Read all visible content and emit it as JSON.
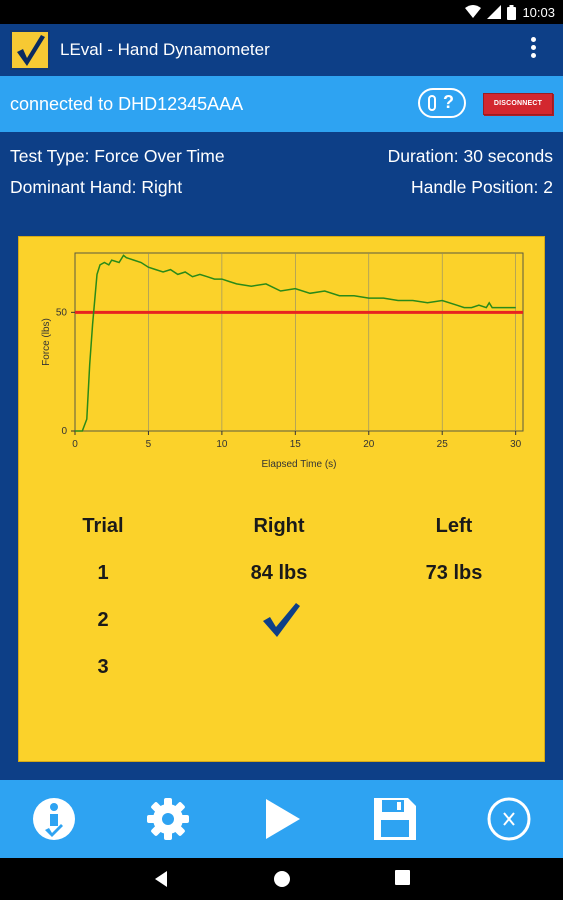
{
  "status_bar": {
    "time": "10:03"
  },
  "app_bar": {
    "title": "LEval - Hand Dynamometer"
  },
  "connection": {
    "text": "connected to DHD12345AAA",
    "help_label": "?",
    "disconnect_label": "DISCONNECT"
  },
  "test_info": {
    "test_type": "Test Type: Force Over Time",
    "duration": "Duration: 30 seconds",
    "dominant_hand": "Dominant Hand: Right",
    "handle_position": "Handle Position: 2"
  },
  "chart_data": {
    "type": "line",
    "xlabel": "Elapsed Time (s)",
    "ylabel": "Force (lbs)",
    "xlim": [
      0,
      30.5
    ],
    "ylim": [
      0,
      75
    ],
    "xticks": [
      0,
      5,
      10,
      15,
      20,
      25,
      30
    ],
    "yticks": [
      0,
      50
    ],
    "grid": true,
    "threshold": {
      "value": 50,
      "color": "#e8231f"
    },
    "series": [
      {
        "color": "#2a8a18",
        "x": [
          0,
          0.5,
          0.8,
          1.0,
          1.2,
          1.5,
          1.7,
          2.0,
          2.3,
          2.5,
          3.0,
          3.3,
          3.5,
          4.0,
          4.5,
          5.0,
          5.5,
          6.0,
          6.5,
          7.0,
          7.5,
          8.0,
          8.5,
          9.0,
          9.5,
          10.0,
          10.5,
          11.0,
          12.0,
          13.0,
          14.0,
          15.0,
          16.0,
          17.0,
          18.0,
          19.0,
          20.0,
          21.0,
          22.0,
          23.0,
          24.0,
          25.0,
          26.0,
          26.5,
          27.0,
          27.5,
          28.0,
          28.2,
          28.4,
          29.0,
          30.0
        ],
        "y": [
          0,
          0,
          5,
          28,
          45,
          66,
          70,
          71,
          70,
          72,
          71,
          74,
          73,
          72,
          71,
          69,
          68,
          67,
          68,
          66,
          67,
          65,
          66,
          65,
          64,
          64,
          63,
          62,
          61,
          62,
          59,
          60,
          58,
          59,
          57,
          57,
          56,
          56,
          55,
          55,
          54,
          55,
          53,
          52,
          52,
          53,
          52,
          54,
          52,
          52,
          52
        ]
      }
    ]
  },
  "trials": {
    "headers": [
      "Trial",
      "Right",
      "Left"
    ],
    "rows": [
      {
        "trial": "1",
        "right": "84 lbs",
        "left": "73 lbs"
      },
      {
        "trial": "2",
        "right": "",
        "left": ""
      },
      {
        "trial": "3",
        "right": "",
        "left": ""
      }
    ]
  },
  "icons": {
    "accent": "#0d3f87",
    "bar_blue": "#2ea3f2",
    "panel_yellow": "#fbd22a",
    "bottom_buttons": [
      "info-check-icon",
      "gear-icon",
      "play-icon",
      "save-icon",
      "close-circle-icon"
    ]
  }
}
